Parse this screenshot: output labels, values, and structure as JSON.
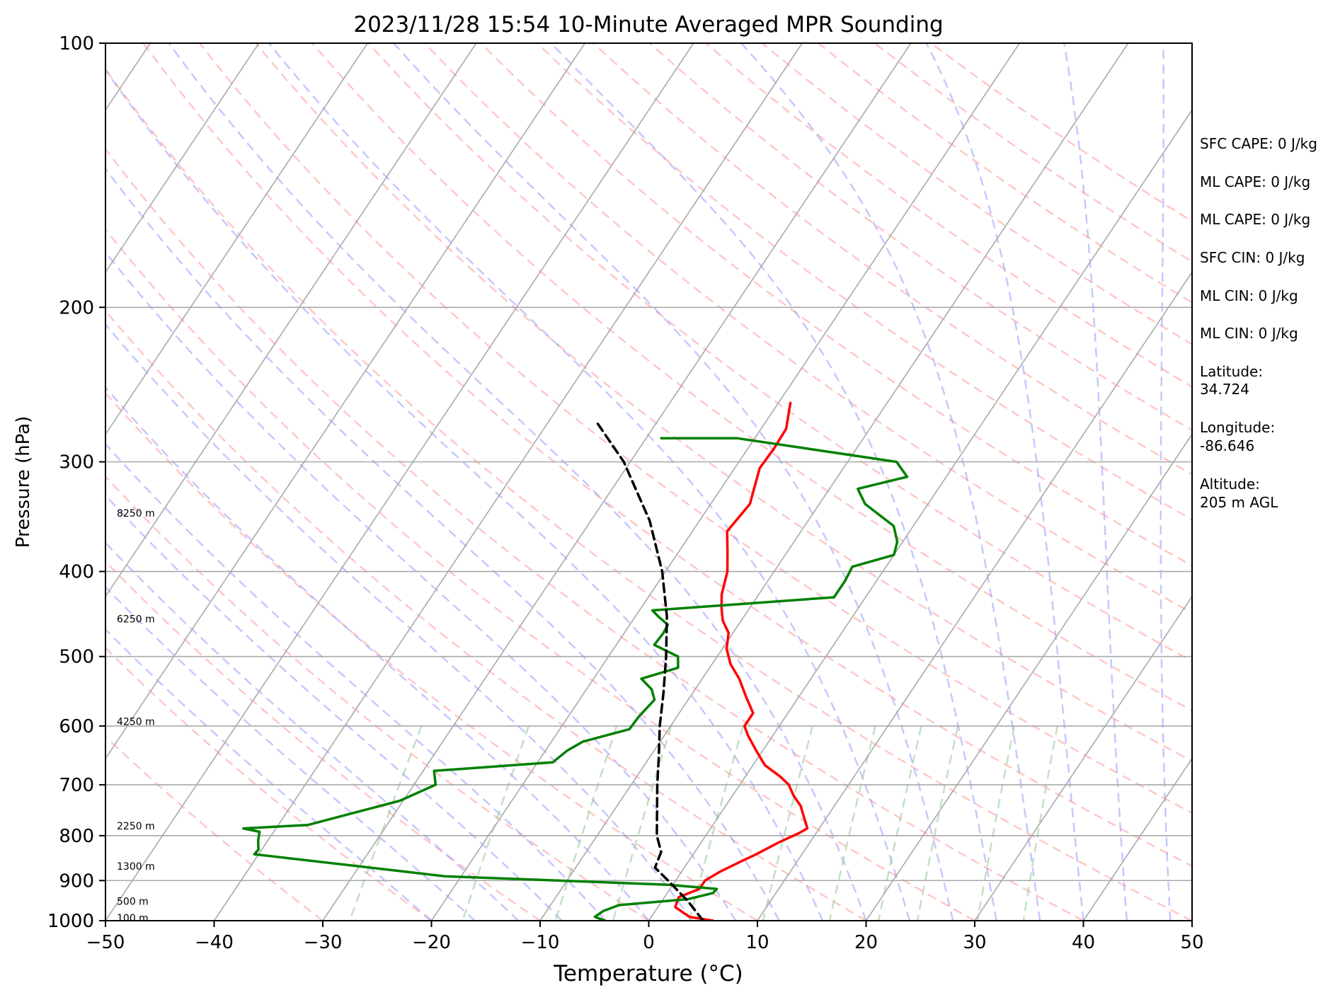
{
  "chart_data": {
    "type": "line",
    "title": "2023/11/28 15:54 10-Minute Averaged MPR Sounding",
    "xlabel": "Temperature (°C)",
    "ylabel": "Pressure (hPa)",
    "xlim": [
      -50,
      50
    ],
    "ylim": [
      1000,
      100
    ],
    "y_scale": "log",
    "skew": "skew-T log-p",
    "x_ticks": [
      -50,
      -40,
      -30,
      -20,
      -10,
      0,
      10,
      20,
      30,
      40,
      50
    ],
    "x_tick_labels": [
      "−50",
      "−40",
      "−30",
      "−20",
      "−10",
      "0",
      "10",
      "20",
      "30",
      "40",
      "50"
    ],
    "y_ticks": [
      100,
      200,
      300,
      400,
      500,
      600,
      700,
      800,
      900,
      1000
    ],
    "y_tick_labels": [
      "100",
      "200",
      "300",
      "400",
      "500",
      "600",
      "700",
      "800",
      "900",
      "1000"
    ],
    "grid": true,
    "height_labels": [
      {
        "text": "100 m",
        "p": 993
      },
      {
        "text": "500 m",
        "p": 950
      },
      {
        "text": "1300 m",
        "p": 867
      },
      {
        "text": "2250 m",
        "p": 780
      },
      {
        "text": "4250 m",
        "p": 593
      },
      {
        "text": "6250 m",
        "p": 453
      },
      {
        "text": "8250 m",
        "p": 343
      }
    ],
    "series": [
      {
        "role": "temperature",
        "color": "#ff0000",
        "points": [
          [
            1000,
            5.9
          ],
          [
            990,
            3.5
          ],
          [
            965,
            1.6
          ],
          [
            940,
            1.3
          ],
          [
            920,
            2.7
          ],
          [
            900,
            2.7
          ],
          [
            880,
            3.5
          ],
          [
            855,
            4.9
          ],
          [
            840,
            5.8
          ],
          [
            815,
            7.1
          ],
          [
            795,
            8.4
          ],
          [
            785,
            8.9
          ],
          [
            760,
            7.8
          ],
          [
            740,
            6.9
          ],
          [
            720,
            5.6
          ],
          [
            700,
            4.5
          ],
          [
            685,
            3.2
          ],
          [
            665,
            1.1
          ],
          [
            640,
            -0.6
          ],
          [
            615,
            -2.3
          ],
          [
            600,
            -3.2
          ],
          [
            580,
            -3.2
          ],
          [
            555,
            -4.9
          ],
          [
            530,
            -6.6
          ],
          [
            510,
            -8.3
          ],
          [
            490,
            -9.6
          ],
          [
            470,
            -10.4
          ],
          [
            455,
            -11.7
          ],
          [
            440,
            -12.6
          ],
          [
            425,
            -13.4
          ],
          [
            400,
            -14.3
          ],
          [
            380,
            -15.5
          ],
          [
            360,
            -16.8
          ],
          [
            335,
            -16.4
          ],
          [
            305,
            -17.7
          ],
          [
            290,
            -17.6
          ],
          [
            275,
            -17.7
          ],
          [
            257,
            -18.9
          ]
        ]
      },
      {
        "role": "dewpoint",
        "color": "#008000",
        "points": [
          [
            1000,
            -4.0
          ],
          [
            990,
            -5.2
          ],
          [
            975,
            -4.8
          ],
          [
            960,
            -3.7
          ],
          [
            945,
            2.3
          ],
          [
            930,
            4.2
          ],
          [
            920,
            4.3
          ],
          [
            910,
            -0.4
          ],
          [
            890,
            -21.5
          ],
          [
            840,
            -40.4
          ],
          [
            830,
            -40.3
          ],
          [
            810,
            -40.9
          ],
          [
            792,
            -41.3
          ],
          [
            785,
            -43.0
          ],
          [
            778,
            -37.3
          ],
          [
            730,
            -30.3
          ],
          [
            700,
            -28.0
          ],
          [
            675,
            -29.0
          ],
          [
            660,
            -18.6
          ],
          [
            640,
            -18.0
          ],
          [
            625,
            -17.1
          ],
          [
            605,
            -13.6
          ],
          [
            585,
            -13.5
          ],
          [
            560,
            -13.1
          ],
          [
            545,
            -14.0
          ],
          [
            530,
            -15.6
          ],
          [
            515,
            -12.9
          ],
          [
            500,
            -13.6
          ],
          [
            485,
            -16.5
          ],
          [
            470,
            -16.4
          ],
          [
            460,
            -16.5
          ],
          [
            450,
            -17.9
          ],
          [
            443,
            -18.8
          ],
          [
            428,
            -2.9
          ],
          [
            410,
            -2.9
          ],
          [
            395,
            -3.1
          ],
          [
            383,
            0.0
          ],
          [
            370,
            -0.5
          ],
          [
            355,
            -1.8
          ],
          [
            335,
            -5.8
          ],
          [
            322,
            -7.4
          ],
          [
            312,
            -3.6
          ],
          [
            300,
            -5.5
          ],
          [
            282,
            -21.6
          ],
          [
            282,
            -28.6
          ]
        ]
      },
      {
        "role": "parcel",
        "color": "#000000",
        "dashed": true,
        "points": [
          [
            1000,
            5.0
          ],
          [
            950,
            2.4
          ],
          [
            900,
            -0.7
          ],
          [
            870,
            -2.7
          ],
          [
            835,
            -3.1
          ],
          [
            800,
            -4.5
          ],
          [
            750,
            -6.0
          ],
          [
            700,
            -7.6
          ],
          [
            650,
            -9.2
          ],
          [
            600,
            -11.0
          ],
          [
            550,
            -12.7
          ],
          [
            500,
            -14.7
          ],
          [
            450,
            -17.1
          ],
          [
            400,
            -20.3
          ],
          [
            350,
            -24.6
          ],
          [
            300,
            -30.6
          ],
          [
            270,
            -35.6
          ]
        ]
      }
    ],
    "reference_lines": {
      "isotherms": {
        "color": "#a9a9a9",
        "step": 10
      },
      "dry_adiabats": {
        "color": "#ff9999",
        "dashed": true
      },
      "moist_adiabats": {
        "color": "#9999ff",
        "dashed": true
      },
      "mixing_ratio": {
        "color": "#99cc99",
        "dashed": true
      }
    }
  },
  "info_panel": {
    "sfc_cape": "SFC CAPE: 0 J/kg",
    "ml_cape_1": "ML CAPE: 0 J/kg",
    "ml_cape_2": "ML CAPE: 0 J/kg",
    "sfc_cin": "SFC CIN: 0 J/kg",
    "ml_cin_1": "ML CIN: 0 J/kg",
    "ml_cin_2": "ML CIN: 0 J/kg",
    "latitude_label": "Latitude:",
    "latitude_value": "34.724",
    "longitude_label": "Longitude:",
    "longitude_value": "-86.646",
    "altitude_label": "Altitude:",
    "altitude_value": "205 m AGL"
  }
}
